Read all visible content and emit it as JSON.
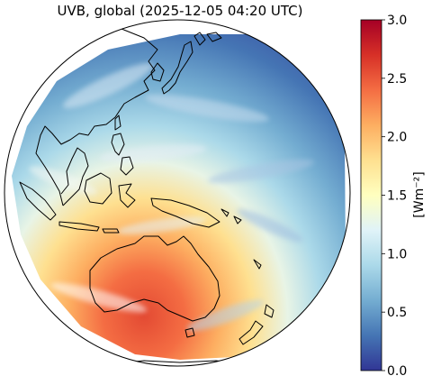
{
  "figure": {
    "title": "UVB, global (2025-12-05 04:20 UTC)"
  },
  "colorbar": {
    "label": "[Wm⁻²]",
    "min": 0.0,
    "max": 3.0,
    "ticks": [
      "0.0",
      "0.5",
      "1.0",
      "1.5",
      "2.0",
      "2.5",
      "3.0"
    ],
    "colormap": [
      "#313695",
      "#4575b4",
      "#74add1",
      "#abd9e9",
      "#e0f3f8",
      "#ffffbf",
      "#fee090",
      "#fdae61",
      "#f46d43",
      "#d73027",
      "#a50026"
    ]
  },
  "map": {
    "projection": "orthographic (centred on the western Pacific / Maritime Continent)",
    "regions": [
      "East Asia",
      "Japan",
      "Philippines",
      "Indonesia",
      "New Guinea",
      "Australia",
      "New Zealand",
      "Western Pacific"
    ],
    "visible_value_range": {
      "min": 0.0,
      "max": 2.6
    },
    "note_colors": {
      "coastline": "#000000",
      "nodata": "#ffffff"
    }
  }
}
